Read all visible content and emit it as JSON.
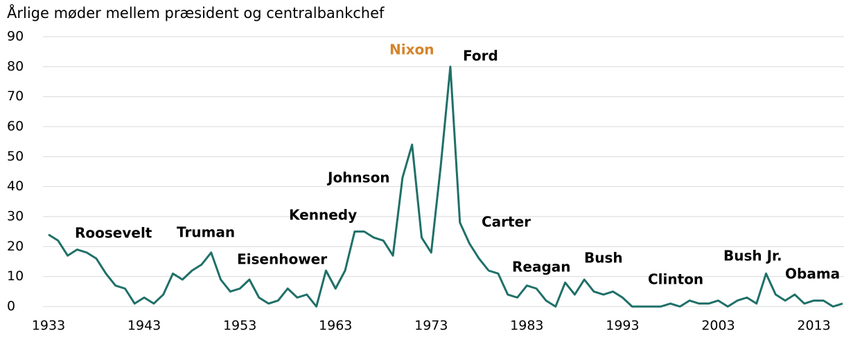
{
  "chart_data": {
    "type": "line",
    "title": "Årlige møder mellem præsident og centralbankchef",
    "x": [
      1933,
      1934,
      1935,
      1936,
      1937,
      1938,
      1939,
      1940,
      1941,
      1942,
      1943,
      1944,
      1945,
      1946,
      1947,
      1948,
      1949,
      1950,
      1951,
      1952,
      1953,
      1954,
      1955,
      1956,
      1957,
      1958,
      1959,
      1960,
      1961,
      1962,
      1963,
      1964,
      1965,
      1966,
      1967,
      1968,
      1969,
      1970,
      1971,
      1972,
      1973,
      1974,
      1975,
      1976,
      1977,
      1978,
      1979,
      1980,
      1981,
      1982,
      1983,
      1984,
      1985,
      1986,
      1987,
      1988,
      1989,
      1990,
      1991,
      1992,
      1993,
      1994,
      1995,
      1996,
      1997,
      1998,
      1999,
      2000,
      2001,
      2002,
      2003,
      2004,
      2005,
      2006,
      2007,
      2008,
      2009,
      2010,
      2011,
      2012,
      2013,
      2014,
      2015,
      2016
    ],
    "series": [
      {
        "name": "Møder",
        "color": "#1f7068",
        "values": [
          24,
          22,
          17,
          19,
          18,
          16,
          11,
          7,
          6,
          1,
          3,
          1,
          4,
          11,
          9,
          12,
          14,
          18,
          9,
          5,
          6,
          9,
          3,
          1,
          2,
          6,
          3,
          4,
          0,
          12,
          6,
          12,
          25,
          25,
          23,
          22,
          17,
          43,
          54,
          23,
          18,
          47,
          80,
          28,
          21,
          16,
          12,
          11,
          4,
          3,
          7,
          6,
          2,
          0,
          8,
          4,
          9,
          5,
          4,
          5,
          3,
          0,
          0,
          0,
          0,
          1,
          0,
          2,
          1,
          1,
          2,
          0,
          2,
          3,
          1,
          11,
          4,
          2,
          4,
          1,
          2,
          2,
          0,
          1
        ]
      }
    ],
    "xlim": [
      1933,
      2016
    ],
    "xticks": [
      1933,
      1943,
      1953,
      1963,
      1973,
      1983,
      1993,
      2003,
      2013
    ],
    "ylim": [
      0,
      90
    ],
    "yticks": [
      0,
      10,
      20,
      30,
      40,
      50,
      60,
      70,
      80,
      90
    ],
    "grid": true,
    "annotations": [
      {
        "text": "Roosevelt"
      },
      {
        "text": "Truman"
      },
      {
        "text": "Eisenhower"
      },
      {
        "text": "Kennedy"
      },
      {
        "text": "Johnson"
      },
      {
        "text": "Nixon",
        "color": "#d4842a"
      },
      {
        "text": "Ford"
      },
      {
        "text": "Carter"
      },
      {
        "text": "Reagan"
      },
      {
        "text": "Bush"
      },
      {
        "text": "Clinton"
      },
      {
        "text": "Bush Jr."
      },
      {
        "text": "Obama"
      }
    ]
  }
}
